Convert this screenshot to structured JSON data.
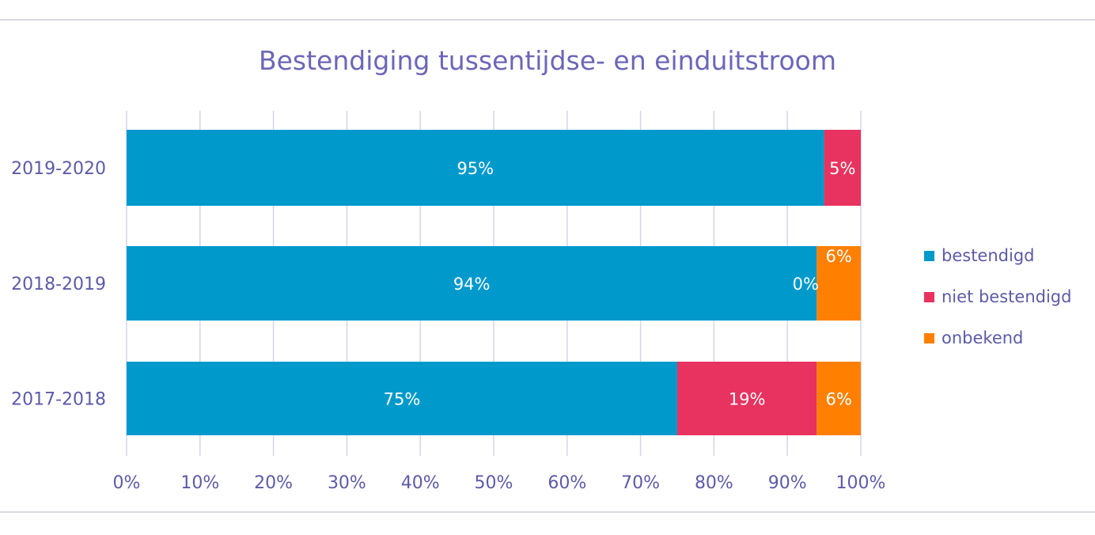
{
  "chart_data": {
    "type": "bar",
    "orientation": "horizontal",
    "stacked": true,
    "title": "Bestendiging tussentijdse- en einduitstroom",
    "categories": [
      "2019-2020",
      "2018-2019",
      "2017-2018"
    ],
    "series": [
      {
        "name": "bestendigd",
        "color": "#0099cc",
        "values": [
          95,
          94,
          75
        ],
        "labels": [
          "95%",
          "94%",
          "75%"
        ]
      },
      {
        "name": "niet bestendigd",
        "color": "#e8325f",
        "values": [
          5,
          0,
          19
        ],
        "labels": [
          "5%",
          "0%",
          "19%"
        ]
      },
      {
        "name": "onbekend",
        "color": "#ff8000",
        "values": [
          0,
          6,
          6
        ],
        "labels": [
          "",
          "6%",
          "6%"
        ]
      }
    ],
    "xlim": [
      0,
      100
    ],
    "x_ticks": [
      "0%",
      "10%",
      "20%",
      "30%",
      "40%",
      "50%",
      "60%",
      "70%",
      "80%",
      "90%",
      "100%"
    ],
    "grid": true,
    "legend": "right"
  }
}
